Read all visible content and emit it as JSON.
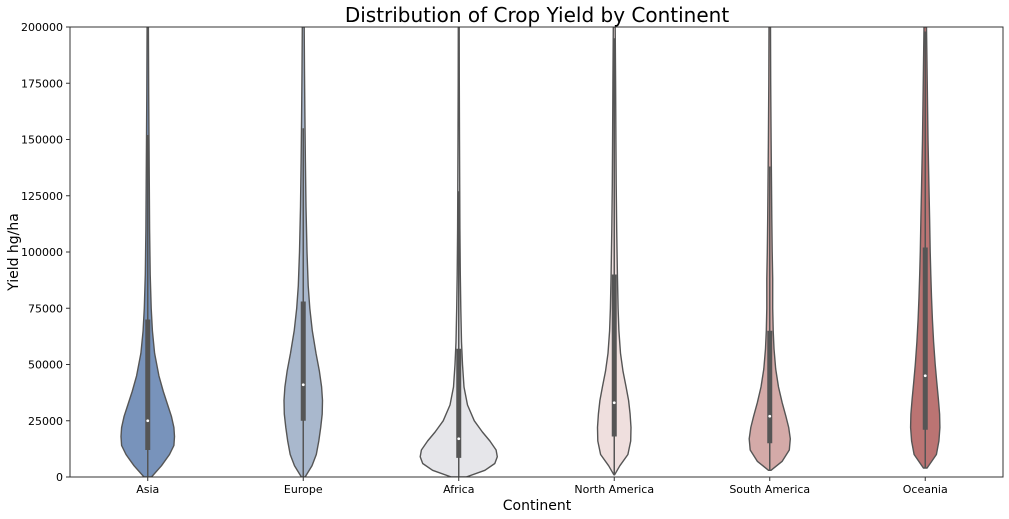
{
  "chart_data": {
    "type": "violin",
    "title": "Distribution of Crop Yield by Continent",
    "xlabel": "Continent",
    "ylabel": "Yield hg/ha",
    "ylim": [
      0,
      200000
    ],
    "yticks": [
      0,
      25000,
      50000,
      75000,
      100000,
      125000,
      150000,
      175000,
      200000
    ],
    "grid": false,
    "categories": [
      "Asia",
      "Europe",
      "Africa",
      "North America",
      "South America",
      "Oceania"
    ],
    "series": [
      {
        "category": "Asia",
        "color": "#7893bb",
        "median": 25000,
        "q1": 12000,
        "q3": 70000,
        "whisker_low": 0,
        "whisker_high": 152000,
        "density": [
          [
            0,
            0.06
          ],
          [
            5000,
            0.22
          ],
          [
            10000,
            0.35
          ],
          [
            14000,
            0.42
          ],
          [
            18000,
            0.43
          ],
          [
            22000,
            0.42
          ],
          [
            27000,
            0.38
          ],
          [
            32000,
            0.32
          ],
          [
            38000,
            0.25
          ],
          [
            45000,
            0.18
          ],
          [
            55000,
            0.11
          ],
          [
            65000,
            0.075
          ],
          [
            75000,
            0.055
          ],
          [
            90000,
            0.04
          ],
          [
            110000,
            0.03
          ],
          [
            130000,
            0.025
          ],
          [
            150000,
            0.02
          ],
          [
            170000,
            0.015
          ],
          [
            190000,
            0.012
          ],
          [
            200000,
            0.011
          ]
        ]
      },
      {
        "category": "Europe",
        "color": "#a9b8cd",
        "median": 41000,
        "q1": 25000,
        "q3": 78000,
        "whisker_low": 0,
        "whisker_high": 155000,
        "density": [
          [
            0,
            0.03
          ],
          [
            5000,
            0.14
          ],
          [
            10000,
            0.21
          ],
          [
            16000,
            0.25
          ],
          [
            22000,
            0.28
          ],
          [
            28000,
            0.305
          ],
          [
            34000,
            0.31
          ],
          [
            40000,
            0.295
          ],
          [
            47000,
            0.26
          ],
          [
            55000,
            0.205
          ],
          [
            65000,
            0.145
          ],
          [
            75000,
            0.105
          ],
          [
            85000,
            0.08
          ],
          [
            100000,
            0.06
          ],
          [
            120000,
            0.045
          ],
          [
            140000,
            0.035
          ],
          [
            160000,
            0.027
          ],
          [
            180000,
            0.02
          ],
          [
            200000,
            0.016
          ]
        ]
      },
      {
        "category": "Africa",
        "color": "#e6e6ea",
        "median": 17000,
        "q1": 8500,
        "q3": 57000,
        "whisker_low": 0,
        "whisker_high": 127000,
        "density": [
          [
            0,
            0.12
          ],
          [
            3000,
            0.42
          ],
          [
            6000,
            0.58
          ],
          [
            9000,
            0.62
          ],
          [
            12000,
            0.6
          ],
          [
            16000,
            0.5
          ],
          [
            20000,
            0.38
          ],
          [
            25000,
            0.25
          ],
          [
            32000,
            0.14
          ],
          [
            40000,
            0.085
          ],
          [
            50000,
            0.06
          ],
          [
            60000,
            0.045
          ],
          [
            75000,
            0.033
          ],
          [
            90000,
            0.025
          ],
          [
            110000,
            0.019
          ],
          [
            130000,
            0.015
          ],
          [
            150000,
            0.012
          ],
          [
            175000,
            0.009
          ],
          [
            200000,
            0.007
          ]
        ]
      },
      {
        "category": "North America",
        "color": "#efdfde",
        "median": 33000,
        "q1": 18000,
        "q3": 90000,
        "whisker_low": 1000,
        "whisker_high": 195000,
        "density": [
          [
            1000,
            0.005
          ],
          [
            5000,
            0.09
          ],
          [
            10000,
            0.22
          ],
          [
            16000,
            0.265
          ],
          [
            22000,
            0.27
          ],
          [
            28000,
            0.255
          ],
          [
            34000,
            0.23
          ],
          [
            40000,
            0.19
          ],
          [
            47000,
            0.14
          ],
          [
            55000,
            0.1
          ],
          [
            65000,
            0.075
          ],
          [
            75000,
            0.062
          ],
          [
            90000,
            0.05
          ],
          [
            110000,
            0.04
          ],
          [
            130000,
            0.032
          ],
          [
            150000,
            0.027
          ],
          [
            175000,
            0.021
          ],
          [
            200000,
            0.016
          ]
        ]
      },
      {
        "category": "South America",
        "color": "#d4aaa8",
        "median": 27000,
        "q1": 15000,
        "q3": 65000,
        "whisker_low": 3000,
        "whisker_high": 138000,
        "density": [
          [
            3000,
            0.02
          ],
          [
            7000,
            0.2
          ],
          [
            12000,
            0.315
          ],
          [
            17000,
            0.33
          ],
          [
            22000,
            0.305
          ],
          [
            27000,
            0.26
          ],
          [
            33000,
            0.2
          ],
          [
            40000,
            0.14
          ],
          [
            48000,
            0.095
          ],
          [
            57000,
            0.068
          ],
          [
            65000,
            0.055
          ],
          [
            75000,
            0.047
          ],
          [
            88000,
            0.048
          ],
          [
            100000,
            0.04
          ],
          [
            115000,
            0.033
          ],
          [
            130000,
            0.028
          ],
          [
            150000,
            0.022
          ],
          [
            175000,
            0.016
          ],
          [
            200000,
            0.012
          ]
        ]
      },
      {
        "category": "Oceania",
        "color": "#bb7473",
        "median": 45000,
        "q1": 21000,
        "q3": 102000,
        "whisker_low": 4000,
        "whisker_high": 198000,
        "density": [
          [
            4000,
            0.03
          ],
          [
            10000,
            0.18
          ],
          [
            16000,
            0.22
          ],
          [
            22000,
            0.235
          ],
          [
            28000,
            0.23
          ],
          [
            35000,
            0.21
          ],
          [
            42000,
            0.185
          ],
          [
            50000,
            0.16
          ],
          [
            60000,
            0.135
          ],
          [
            70000,
            0.115
          ],
          [
            80000,
            0.1
          ],
          [
            90000,
            0.09
          ],
          [
            100000,
            0.08
          ],
          [
            115000,
            0.07
          ],
          [
            130000,
            0.058
          ],
          [
            150000,
            0.045
          ],
          [
            170000,
            0.035
          ],
          [
            190000,
            0.025
          ],
          [
            200000,
            0.02
          ]
        ]
      }
    ]
  }
}
